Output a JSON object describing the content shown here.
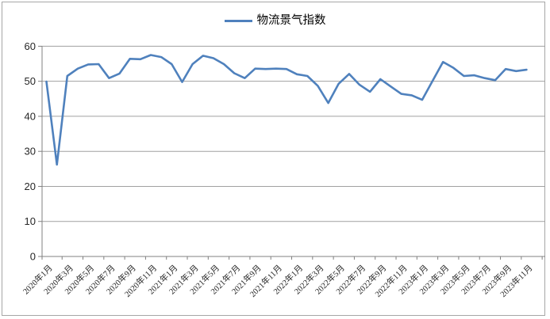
{
  "chart_data": {
    "type": "line",
    "title": "",
    "xlabel": "",
    "ylabel": "",
    "ylim": [
      0,
      60
    ],
    "y_ticks": [
      0,
      10,
      20,
      30,
      40,
      50,
      60
    ],
    "grid": "horizontal",
    "legend_position": "top-center",
    "x_tick_label_every": 2,
    "categories": [
      "2020年1月",
      "2020年2月",
      "2020年3月",
      "2020年4月",
      "2020年5月",
      "2020年6月",
      "2020年7月",
      "2020年8月",
      "2020年9月",
      "2020年10月",
      "2020年11月",
      "2020年12月",
      "2021年1月",
      "2021年2月",
      "2021年3月",
      "2021年4月",
      "2021年5月",
      "2021年6月",
      "2021年7月",
      "2021年8月",
      "2021年9月",
      "2021年10月",
      "2021年11月",
      "2021年12月",
      "2022年1月",
      "2022年2月",
      "2022年3月",
      "2022年4月",
      "2022年5月",
      "2022年6月",
      "2022年7月",
      "2022年8月",
      "2022年9月",
      "2022年10月",
      "2022年11月",
      "2022年12月",
      "2023年1月",
      "2023年2月",
      "2023年3月",
      "2023年4月",
      "2023年5月",
      "2023年6月",
      "2023年7月",
      "2023年8月",
      "2023年9月",
      "2023年10月",
      "2023年11月"
    ],
    "x_tick_labels_shown": [
      "2020年1月",
      "2020年3月",
      "2020年5月",
      "2020年7月",
      "2020年9月",
      "2020年11月",
      "2021年1月",
      "2021年3月",
      "2021年5月",
      "2021年7月",
      "2021年9月",
      "2021年11月",
      "2022年1月",
      "2022年3月",
      "2022年5月",
      "2022年7月",
      "2022年9月",
      "2022年11月",
      "2023年1月",
      "2023年3月",
      "2023年5月",
      "2023年7月",
      "2023年9月",
      "2023年11月"
    ],
    "series": [
      {
        "name": "物流景气指数",
        "color": "#4F81BD",
        "values": [
          49.9,
          26.2,
          51.5,
          53.6,
          54.8,
          54.9,
          50.9,
          52.2,
          56.4,
          56.3,
          57.5,
          56.9,
          54.9,
          49.8,
          54.9,
          57.3,
          56.6,
          54.9,
          52.3,
          50.9,
          53.6,
          53.5,
          53.6,
          53.5,
          52.0,
          51.5,
          48.7,
          43.8,
          49.3,
          52.1,
          49.0,
          47.0,
          50.6,
          48.5,
          46.4,
          46.0,
          44.7,
          50.1,
          55.5,
          53.8,
          51.5,
          51.7,
          50.9,
          50.3,
          53.5,
          52.9,
          53.3
        ]
      }
    ]
  },
  "legend": {
    "entries": [
      {
        "label": "物流景气指数",
        "color": "#4F81BD"
      }
    ]
  },
  "colors": {
    "line": "#4F81BD",
    "grid": "#a0a0a0",
    "axis": "#808080",
    "text": "#262626",
    "border": "#a6a6a6",
    "background": "#ffffff"
  }
}
